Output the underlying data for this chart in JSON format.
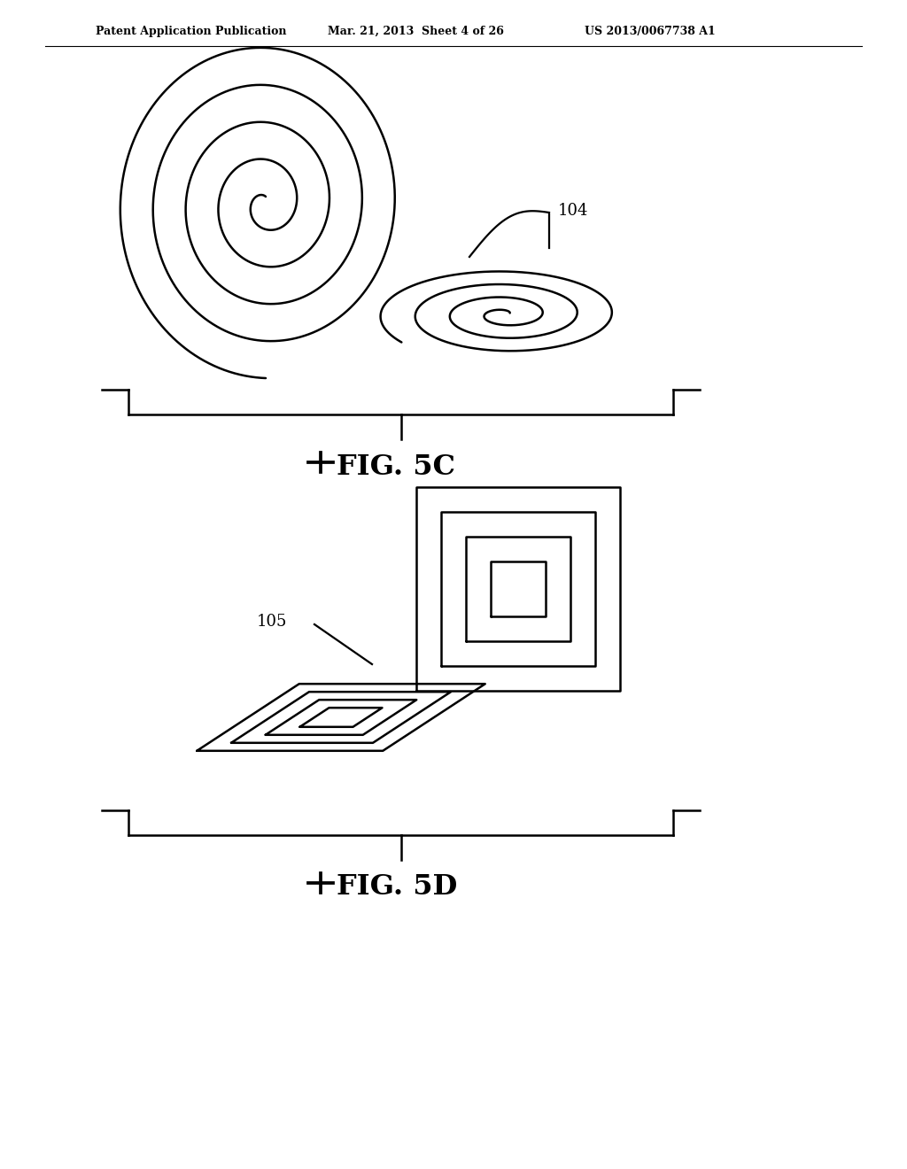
{
  "background_color": "#ffffff",
  "header_left": "Patent Application Publication",
  "header_mid": "Mar. 21, 2013  Sheet 4 of 26",
  "header_right": "US 2013/0067738 A1",
  "fig5c_label": "FIG. 5C",
  "fig5d_label": "FIG. 5D",
  "label_104": "104",
  "label_105": "105",
  "line_color": "#000000",
  "line_width": 1.8
}
